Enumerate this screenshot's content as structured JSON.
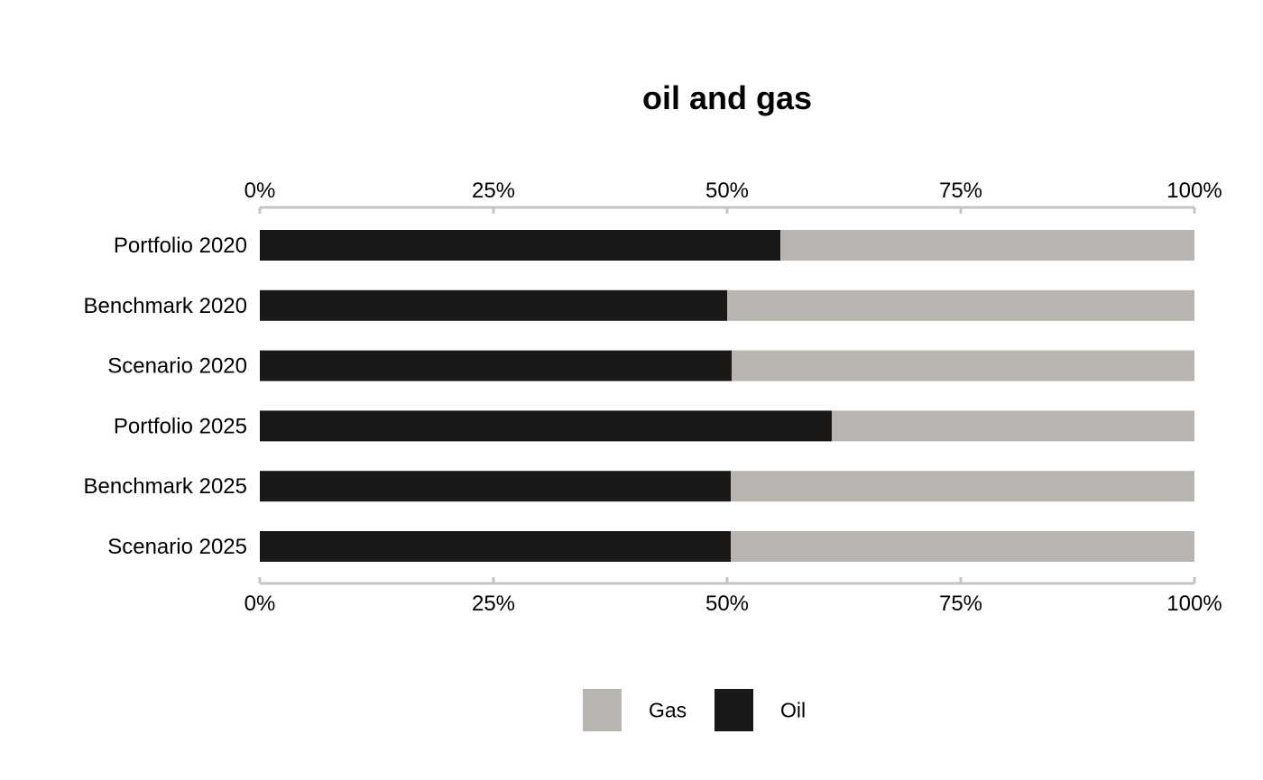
{
  "chart_data": {
    "type": "bar",
    "orientation": "horizontal",
    "stacked": true,
    "normalized": true,
    "title": "oil and gas",
    "xlabel": "",
    "ylabel": "",
    "xlim": [
      0,
      100
    ],
    "x_ticks": [
      "0%",
      "25%",
      "50%",
      "75%",
      "100%"
    ],
    "x_tick_values": [
      0,
      25,
      50,
      75,
      100
    ],
    "x_axis_positions": [
      "top",
      "bottom"
    ],
    "grid": false,
    "legend_position": "bottom",
    "categories": [
      "Portfolio 2020",
      "Benchmark 2020",
      "Scenario 2020",
      "Portfolio 2025",
      "Benchmark 2025",
      "Scenario 2025"
    ],
    "series": [
      {
        "name": "Oil",
        "color": "#1a1918",
        "values": [
          55.7,
          50.0,
          50.5,
          61.2,
          50.4,
          50.4
        ]
      },
      {
        "name": "Gas",
        "color": "#b8b5b0",
        "values": [
          44.3,
          50.0,
          49.5,
          38.8,
          49.6,
          49.6
        ]
      }
    ],
    "legend": [
      {
        "name": "Gas",
        "color": "#b8b5b0"
      },
      {
        "name": "Oil",
        "color": "#1a1918"
      }
    ],
    "axis_color": "#c4c4c4"
  }
}
